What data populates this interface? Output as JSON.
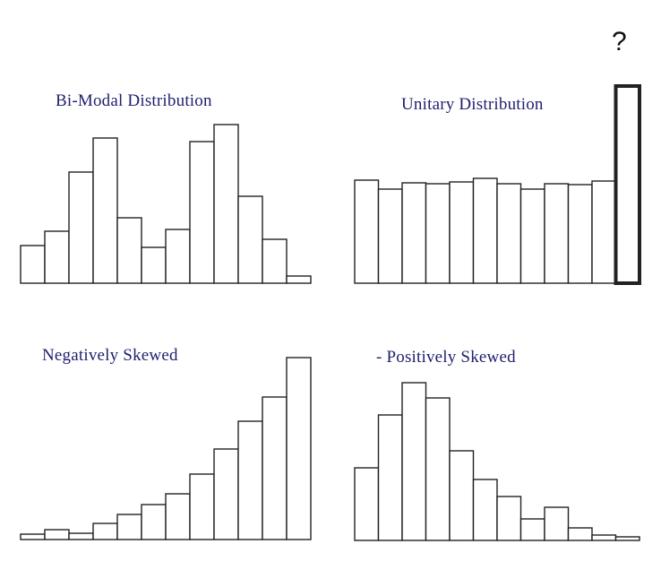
{
  "annotation": "?",
  "chart_data": [
    {
      "type": "bar",
      "title": "Bi-Modal Distribution",
      "values": [
        42,
        58,
        124,
        162,
        73,
        40,
        60,
        158,
        177,
        97,
        49,
        8
      ],
      "highlight": [
        false,
        false,
        false,
        false,
        false,
        false,
        false,
        false,
        false,
        false,
        false,
        false
      ],
      "color": "#222222"
    },
    {
      "type": "bar",
      "title": "Unitary Distribution",
      "values": [
        115,
        105,
        112,
        111,
        113,
        117,
        111,
        105,
        111,
        110,
        114,
        220
      ],
      "highlight": [
        false,
        false,
        false,
        false,
        false,
        false,
        false,
        false,
        false,
        false,
        false,
        true
      ],
      "color": "#222222"
    },
    {
      "type": "bar",
      "title": "Negatively Skewed",
      "values": [
        6,
        11,
        7,
        18,
        28,
        39,
        51,
        73,
        101,
        132,
        159,
        203
      ],
      "highlight": [
        false,
        false,
        false,
        false,
        false,
        false,
        false,
        false,
        false,
        false,
        false,
        false
      ],
      "color": "#222222"
    },
    {
      "type": "bar",
      "title": "- Positively Skewed",
      "values": [
        81,
        140,
        176,
        159,
        100,
        68,
        49,
        24,
        37,
        14,
        6,
        4
      ],
      "highlight": [
        false,
        false,
        false,
        false,
        false,
        false,
        false,
        false,
        false,
        false,
        false,
        false
      ],
      "color": "#222222"
    }
  ]
}
